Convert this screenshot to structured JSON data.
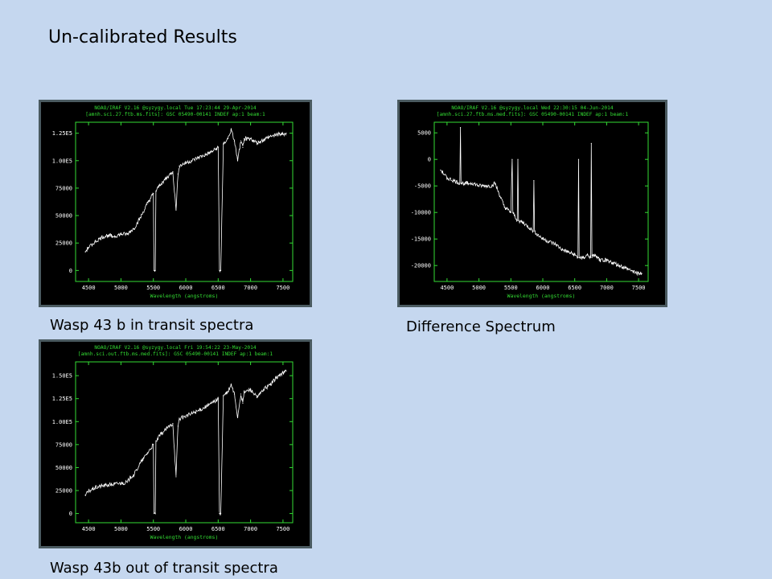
{
  "title": "Un-calibrated Results",
  "captions": {
    "in_transit": "Wasp 43 b in transit spectra",
    "difference": "Difference Spectrum",
    "out_transit": "Wasp 43b out of transit spectra"
  },
  "colors": {
    "background": "#c5d7ef",
    "plot_bg": "#000000",
    "frame": "#4a5a60",
    "header_text": "#33dd33",
    "axes": "#33dd33",
    "trace": "#ffffff"
  },
  "chart_data": [
    {
      "id": "in_transit",
      "type": "line",
      "header1": "NOAO/IRAF V2.16 @syzygy.local Tue 17:23:44 29-Apr-2014",
      "header2": "[amnh.sci.27.ftb.ms.fits]: GSC 05490-00141 INDEF ap:1 beam:1",
      "xlabel": "Wavelength (angstroms)",
      "ylabel": "",
      "xlim": [
        4300,
        7650
      ],
      "ylim": [
        -10000,
        135000
      ],
      "xticks": [
        4500,
        5000,
        5500,
        6000,
        6500,
        7000,
        7500
      ],
      "yticks": [
        0,
        25000,
        50000,
        75000,
        100000,
        125000
      ],
      "ytick_labels": [
        "0",
        "25000",
        "50000",
        "75000",
        "1.00E5",
        "1.25E5"
      ],
      "x": [
        4450,
        4500,
        4600,
        4700,
        4800,
        4900,
        5000,
        5100,
        5150,
        5200,
        5300,
        5400,
        5500,
        5510,
        5530,
        5540,
        5600,
        5700,
        5800,
        5850,
        5880,
        5900,
        6000,
        6100,
        6200,
        6300,
        6400,
        6500,
        6520,
        6540,
        6580,
        6650,
        6700,
        6750,
        6800,
        6850,
        6880,
        6900,
        7000,
        7100,
        7200,
        7300,
        7400,
        7500,
        7550
      ],
      "y": [
        17000,
        21000,
        26000,
        30000,
        32000,
        31000,
        33000,
        33000,
        36000,
        38000,
        48000,
        60000,
        70000,
        0,
        0,
        72000,
        78000,
        84000,
        90000,
        55000,
        88000,
        95000,
        98000,
        100000,
        103000,
        105000,
        108000,
        112000,
        0,
        0,
        115000,
        120000,
        128000,
        118000,
        100000,
        118000,
        112000,
        120000,
        120000,
        116000,
        119000,
        122000,
        124000,
        124000,
        125000
      ]
    },
    {
      "id": "difference",
      "type": "line",
      "header1": "NOAO/IRAF V2.16 @syzygy.local Wed 22:30:15 04-Jun-2014",
      "header2": "[amnh.sci.27.ftb.ms.med.fits]: GSC 05490-00141 INDEF ap:1 beam:1",
      "xlabel": "Wavelength (angstroms)",
      "ylabel": "",
      "xlim": [
        4300,
        7650
      ],
      "ylim": [
        -23000,
        7000
      ],
      "xticks": [
        4500,
        5000,
        5500,
        6000,
        6500,
        7000,
        7500
      ],
      "yticks": [
        5000,
        0,
        -5000,
        -10000,
        -15000,
        -20000
      ],
      "ytick_labels": [
        "5000",
        "0",
        "-5000",
        "-10000",
        "-15000",
        "-20000"
      ],
      "x": [
        4400,
        4500,
        4600,
        4700,
        4710,
        4720,
        4800,
        4900,
        5000,
        5100,
        5200,
        5250,
        5300,
        5400,
        5500,
        5520,
        5530,
        5600,
        5610,
        5620,
        5700,
        5800,
        5850,
        5860,
        5870,
        5900,
        6000,
        6100,
        6200,
        6300,
        6400,
        6500,
        6550,
        6560,
        6570,
        6620,
        6650,
        6700,
        6750,
        6760,
        6770,
        6800,
        6900,
        7000,
        7100,
        7200,
        7300,
        7400,
        7500,
        7550
      ],
      "y": [
        -2000,
        -3500,
        -4000,
        -4500,
        6000,
        -4500,
        -4500,
        -4500,
        -5000,
        -5000,
        -5000,
        -4500,
        -6000,
        -9000,
        -10000,
        0,
        -10000,
        -11500,
        0,
        -11500,
        -12000,
        -13000,
        -13500,
        -4000,
        -13500,
        -14000,
        -15000,
        -15500,
        -16000,
        -17000,
        -17500,
        -18000,
        -18500,
        0,
        -18500,
        -18500,
        -18500,
        -18000,
        -18500,
        3000,
        -18500,
        -18000,
        -19000,
        -19000,
        -19500,
        -20000,
        -20500,
        -21000,
        -21500,
        -21500
      ]
    },
    {
      "id": "out_transit",
      "type": "line",
      "header1": "NOAO/IRAF V2.16 @syzygy.local Fri 19:54:22 23-May-2014",
      "header2": "[amnh.sci.out.ftb.ms.med.fits]: GSC 05490-00141 INDEF ap:1 beam:1",
      "xlabel": "Wavelength (angstroms)",
      "ylabel": "",
      "xlim": [
        4300,
        7650
      ],
      "ylim": [
        -10000,
        165000
      ],
      "xticks": [
        4500,
        5000,
        5500,
        6000,
        6500,
        7000,
        7500
      ],
      "yticks": [
        0,
        25000,
        50000,
        75000,
        100000,
        125000,
        150000
      ],
      "ytick_labels": [
        "0",
        "25000",
        "50000",
        "75000",
        "1.00E5",
        "1.25E5",
        "1.50E5"
      ],
      "x": [
        4450,
        4500,
        4600,
        4700,
        4800,
        4900,
        5000,
        5100,
        5150,
        5200,
        5300,
        5400,
        5500,
        5510,
        5530,
        5540,
        5600,
        5700,
        5800,
        5850,
        5880,
        5900,
        6000,
        6100,
        6200,
        6300,
        6400,
        6500,
        6520,
        6540,
        6580,
        6650,
        6700,
        6750,
        6800,
        6850,
        6880,
        6900,
        7000,
        7100,
        7200,
        7300,
        7400,
        7500,
        7550
      ],
      "y": [
        20000,
        24000,
        28000,
        30000,
        31000,
        32000,
        33000,
        34000,
        40000,
        42000,
        55000,
        65000,
        75000,
        0,
        0,
        78000,
        85000,
        92000,
        98000,
        40000,
        95000,
        103000,
        106000,
        109000,
        112000,
        116000,
        120000,
        125000,
        0,
        0,
        128000,
        132000,
        140000,
        130000,
        105000,
        130000,
        120000,
        132000,
        135000,
        126000,
        135000,
        140000,
        148000,
        153000,
        155000
      ]
    }
  ]
}
